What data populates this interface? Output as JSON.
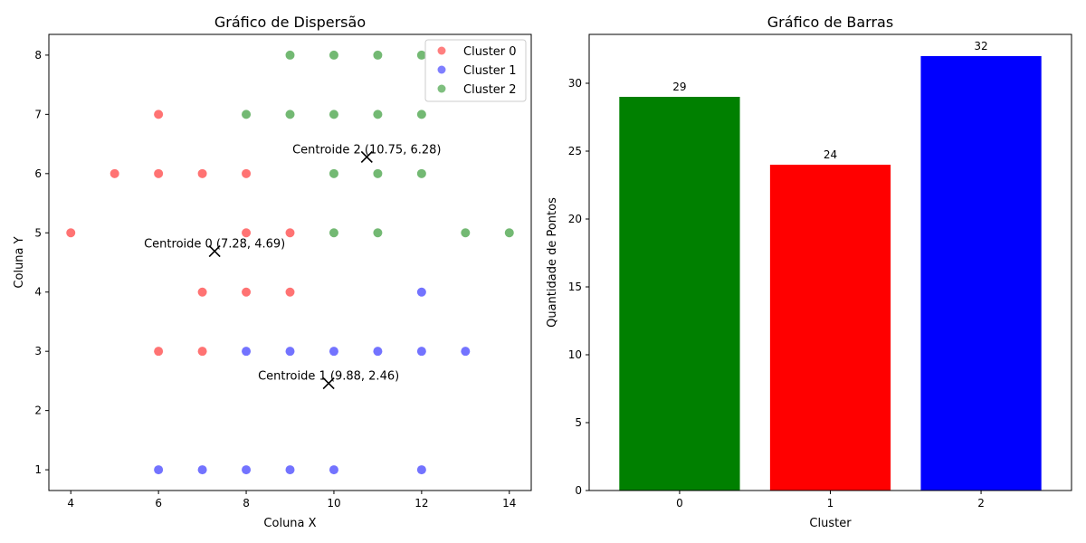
{
  "chart_data": [
    {
      "type": "scatter",
      "title": "Gráfico de Dispersão",
      "xlabel": "Coluna X",
      "ylabel": "Coluna Y",
      "xlim": [
        3.5,
        14.5
      ],
      "ylim": [
        0.65,
        8.35
      ],
      "xticks": [
        "4",
        "6",
        "8",
        "10",
        "12",
        "14"
      ],
      "yticks": [
        "1",
        "2",
        "3",
        "4",
        "5",
        "6",
        "7",
        "8"
      ],
      "legend_position": "top-right",
      "series": [
        {
          "name": "Cluster 0",
          "color": "#ff0000",
          "points": [
            [
              4,
              5
            ],
            [
              5,
              6
            ],
            [
              6,
              7
            ],
            [
              6,
              6
            ],
            [
              6,
              3
            ],
            [
              7,
              6
            ],
            [
              7,
              4
            ],
            [
              7,
              3
            ],
            [
              8,
              6
            ],
            [
              8,
              5
            ],
            [
              8,
              4
            ],
            [
              9,
              5
            ],
            [
              9,
              4
            ]
          ]
        },
        {
          "name": "Cluster 1",
          "color": "#0000ff",
          "points": [
            [
              6,
              1
            ],
            [
              7,
              1
            ],
            [
              8,
              1
            ],
            [
              8,
              3
            ],
            [
              9,
              1
            ],
            [
              9,
              3
            ],
            [
              10,
              1
            ],
            [
              10,
              3
            ],
            [
              11,
              3
            ],
            [
              12,
              1
            ],
            [
              12,
              3
            ],
            [
              12,
              4
            ],
            [
              13,
              3
            ]
          ]
        },
        {
          "name": "Cluster 2",
          "color": "#008000",
          "points": [
            [
              8,
              7
            ],
            [
              9,
              8
            ],
            [
              9,
              7
            ],
            [
              10,
              8
            ],
            [
              10,
              7
            ],
            [
              10,
              6
            ],
            [
              10,
              5
            ],
            [
              11,
              8
            ],
            [
              11,
              7
            ],
            [
              11,
              6
            ],
            [
              11,
              5
            ],
            [
              12,
              8
            ],
            [
              12,
              7
            ],
            [
              12,
              6
            ],
            [
              13,
              5
            ],
            [
              14,
              5
            ]
          ]
        }
      ],
      "centroids": [
        {
          "label": "Centroide 0 (7.28, 4.69)",
          "x": 7.28,
          "y": 4.69
        },
        {
          "label": "Centroide 1 (9.88, 2.46)",
          "x": 9.88,
          "y": 2.46
        },
        {
          "label": "Centroide 2 (10.75, 6.28)",
          "x": 10.75,
          "y": 6.28
        }
      ]
    },
    {
      "type": "bar",
      "title": "Gráfico de Barras",
      "xlabel": "Cluster",
      "ylabel": "Quantidade de Pontos",
      "categories": [
        "0",
        "1",
        "2"
      ],
      "values": [
        29,
        24,
        32
      ],
      "colors": [
        "#008000",
        "#ff0000",
        "#0000ff"
      ],
      "ylim": [
        0,
        33.6
      ],
      "yticks": [
        "0",
        "5",
        "10",
        "15",
        "20",
        "25",
        "30"
      ]
    }
  ]
}
